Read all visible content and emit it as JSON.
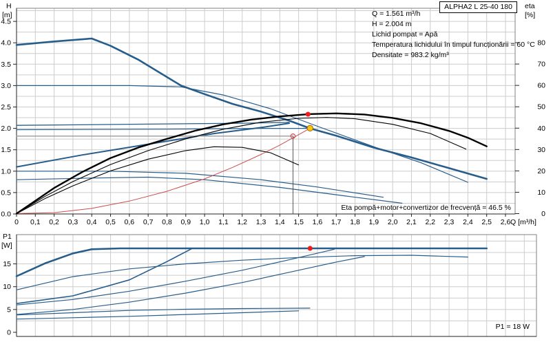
{
  "panel": {
    "model": "ALPHA2 L 25-40 180"
  },
  "info": {
    "lines": [
      "Q = 1.561 m³/h",
      "H = 2.004 m",
      "Lichid pompat = Apă",
      "Temperatura lichidului în timpul funcționării = 60 °C",
      "Densitate = 983.2 kg/m³"
    ]
  },
  "colors": {
    "performance": "#275d8b",
    "eta": "#000000",
    "system": "#cc4d4d",
    "setpoint": "#9a9a9a",
    "drop": "#444444",
    "marker_red": "#ee1c1c",
    "marker_yellow": "#ffc20e",
    "grid": "#cccccc",
    "frame": "#808080"
  },
  "chart_data": [
    {
      "id": "head",
      "type": "line",
      "xlabel": "Q [m³/h]",
      "ylabel_left": "H",
      "ylabel_left_unit": "[m]",
      "ylabel_right": "eta",
      "ylabel_right_unit": "[%]",
      "xlim": [
        0,
        2.6
      ],
      "ylim_left": [
        0,
        4.8
      ],
      "ylim_right": [
        0,
        96
      ],
      "grid": true,
      "legend": "none",
      "x_tick_values": [
        0,
        0.1,
        0.2,
        0.3,
        0.4,
        0.5,
        0.6,
        0.7,
        0.8,
        0.9,
        1.0,
        1.1,
        1.2,
        1.3,
        1.4,
        1.5,
        1.6,
        1.7,
        1.8,
        1.9,
        2.0,
        2.1,
        2.2,
        2.3,
        2.4,
        2.5,
        2.6
      ],
      "x_tick_labels": [
        "0",
        "0,1",
        "0,2",
        "0,3",
        "0,4",
        "0,5",
        "0,6",
        "0,7",
        "0,8",
        "0,9",
        "1,0",
        "1,1",
        "1,2",
        "1,3",
        "1,4",
        "1,5",
        "1,6",
        "1,7",
        "1,8",
        "1,9",
        "2,0",
        "2,1",
        "2,2",
        "2,3",
        "2,4",
        "2,5",
        "2,6"
      ],
      "y_tick_values": [
        0,
        0.5,
        1,
        1.5,
        2,
        2.5,
        3,
        3.5,
        4,
        4.5
      ],
      "y_tick_labels": [
        "0.0",
        "0.5",
        "1.0",
        "1.5",
        "2.0",
        "2.5",
        "3.0",
        "3.5",
        "4.0",
        "4.5"
      ],
      "y2_tick_values": [
        0,
        10,
        20,
        30,
        40,
        50,
        60,
        70,
        80
      ],
      "y2_tick_labels": [
        "0",
        "10",
        "20",
        "30",
        "40",
        "50",
        "60",
        "70",
        "80"
      ],
      "annotation": "Eta pompă+motor+convertizor de frecvență = 46.5 %",
      "series": [
        {
          "name": "speed-iii-curve",
          "role": "performance",
          "axis": "left",
          "width": 2.6,
          "points": [
            [
              0,
              3.95
            ],
            [
              0.2,
              4.03
            ],
            [
              0.4,
              4.1
            ],
            [
              0.5,
              3.93
            ],
            [
              0.65,
              3.6
            ],
            [
              0.875,
              3.0
            ],
            [
              1.0,
              2.8
            ],
            [
              1.15,
              2.57
            ],
            [
              1.3,
              2.39
            ],
            [
              1.45,
              2.18
            ],
            [
              1.561,
              2.0
            ],
            [
              1.7,
              1.83
            ],
            [
              1.9,
              1.55
            ],
            [
              2.1,
              1.32
            ],
            [
              2.3,
              1.07
            ],
            [
              2.5,
              0.82
            ]
          ]
        },
        {
          "name": "speed-ii-curve",
          "role": "performance",
          "axis": "left",
          "width": 1.2,
          "points": [
            [
              0,
              3.0
            ],
            [
              0.6,
              3.0
            ],
            [
              0.875,
              2.97
            ],
            [
              1.1,
              2.78
            ],
            [
              1.35,
              2.46
            ],
            [
              1.6,
              2.05
            ],
            [
              1.9,
              1.57
            ],
            [
              2.15,
              1.2
            ],
            [
              2.4,
              0.74
            ]
          ]
        },
        {
          "name": "cp-high-curve",
          "role": "performance",
          "axis": "left",
          "width": 1.3,
          "points": [
            [
              0,
              2.07
            ],
            [
              0.7,
              2.1
            ],
            [
              1.2,
              2.12
            ],
            [
              1.45,
              2.14
            ]
          ]
        },
        {
          "name": "cp-2-curve",
          "role": "performance",
          "axis": "left",
          "width": 1.2,
          "points": [
            [
              0,
              1.97
            ],
            [
              0.8,
              1.98
            ],
            [
              1.3,
              2.0
            ],
            [
              1.561,
              2.0
            ]
          ]
        },
        {
          "name": "pp-2-curve",
          "role": "performance",
          "axis": "left",
          "width": 2.0,
          "points": [
            [
              0,
              1.1
            ],
            [
              0.35,
              1.38
            ],
            [
              0.7,
              1.63
            ],
            [
              1.05,
              1.88
            ],
            [
              1.3,
              2.02
            ],
            [
              1.45,
              2.12
            ]
          ]
        },
        {
          "name": "speed-i-curve",
          "role": "performance",
          "axis": "left",
          "width": 1.2,
          "points": [
            [
              0,
              1.0
            ],
            [
              0.5,
              1.0
            ],
            [
              0.9,
              0.95
            ],
            [
              1.3,
              0.8
            ],
            [
              1.6,
              0.63
            ],
            [
              1.95,
              0.39
            ]
          ]
        },
        {
          "name": "pp-1-curve",
          "role": "performance",
          "axis": "left",
          "width": 1.2,
          "points": [
            [
              0,
              0.8
            ],
            [
              0.4,
              0.84
            ],
            [
              0.7,
              0.86
            ],
            [
              1.0,
              0.8
            ],
            [
              1.4,
              0.62
            ],
            [
              1.75,
              0.42
            ],
            [
              2.05,
              0.25
            ]
          ]
        },
        {
          "name": "setpoint-line",
          "role": "setpoint",
          "axis": "left",
          "width": 1.3,
          "points": [
            [
              0,
              1.82
            ],
            [
              1.47,
              1.82
            ]
          ]
        },
        {
          "name": "setpoint-drop-line",
          "role": "drop",
          "axis": "left",
          "width": 0.9,
          "points": [
            [
              1.47,
              1.82
            ],
            [
              1.47,
              0
            ]
          ]
        },
        {
          "name": "system-curve",
          "role": "system",
          "axis": "left",
          "width": 1.0,
          "points": [
            [
              0,
              0.01
            ],
            [
              0.2,
              0.03
            ],
            [
              0.4,
              0.13
            ],
            [
              0.6,
              0.3
            ],
            [
              0.8,
              0.53
            ],
            [
              1.0,
              0.82
            ],
            [
              1.15,
              1.09
            ],
            [
              1.3,
              1.39
            ],
            [
              1.4,
              1.61
            ],
            [
              1.47,
              1.78
            ],
            [
              1.561,
              2.004
            ]
          ]
        },
        {
          "name": "eta-speed-iii-curve",
          "role": "eta",
          "axis": "right",
          "width": 2.4,
          "points": [
            [
              0,
              0
            ],
            [
              0.1,
              6
            ],
            [
              0.2,
              12
            ],
            [
              0.35,
              19.5
            ],
            [
              0.5,
              26
            ],
            [
              0.65,
              31
            ],
            [
              0.8,
              35
            ],
            [
              0.95,
              38.8
            ],
            [
              1.1,
              41.8
            ],
            [
              1.25,
              44
            ],
            [
              1.4,
              45.5
            ],
            [
              1.561,
              46.6
            ],
            [
              1.7,
              46.9
            ],
            [
              1.85,
              46.4
            ],
            [
              2.0,
              44.8
            ],
            [
              2.15,
              42.3
            ],
            [
              2.3,
              38.7
            ],
            [
              2.4,
              35.5
            ],
            [
              2.5,
              31.5
            ]
          ]
        },
        {
          "name": "eta-speed-ii-curve",
          "role": "eta",
          "axis": "right",
          "width": 1.1,
          "points": [
            [
              0,
              0
            ],
            [
              0.15,
              8
            ],
            [
              0.3,
              15
            ],
            [
              0.5,
              23
            ],
            [
              0.7,
              29.5
            ],
            [
              0.9,
              35
            ],
            [
              1.1,
              39.5
            ],
            [
              1.3,
              42.8
            ],
            [
              1.5,
              44.6
            ],
            [
              1.65,
              45
            ],
            [
              1.8,
              44.4
            ],
            [
              2.0,
              41.8
            ],
            [
              2.2,
              37.5
            ],
            [
              2.39,
              30.2
            ]
          ]
        },
        {
          "name": "eta-speed-i-curve",
          "role": "eta",
          "axis": "right",
          "width": 1.1,
          "points": [
            [
              0,
              0
            ],
            [
              0.15,
              7
            ],
            [
              0.3,
              13
            ],
            [
              0.5,
              20
            ],
            [
              0.7,
              25.5
            ],
            [
              0.9,
              29.5
            ],
            [
              1.05,
              31.3
            ],
            [
              1.2,
              31
            ],
            [
              1.35,
              28.5
            ],
            [
              1.5,
              22.8
            ]
          ]
        }
      ],
      "markers": [
        {
          "name": "setpoint-marker",
          "shape": "open",
          "axis": "left",
          "q": 1.47,
          "value": 1.82,
          "color": "system",
          "r": 3.2
        },
        {
          "name": "duty-point-marker",
          "shape": "dot",
          "axis": "left",
          "q": 1.561,
          "value": 2.004,
          "color": "marker_yellow",
          "stroke": "#8a6d00",
          "r": 4.2
        },
        {
          "name": "efficiency-point-marker",
          "shape": "dot",
          "axis": "right",
          "q": 1.55,
          "value": 46.5,
          "color": "marker_red",
          "r": 3.6
        }
      ]
    },
    {
      "id": "power",
      "type": "line",
      "xlabel": "",
      "ylabel_left": "P1",
      "ylabel_left_unit": "[W]",
      "xlim": [
        0,
        2.77
      ],
      "ylim_left": [
        0,
        22.3
      ],
      "grid": true,
      "legend": "none",
      "y_tick_values": [
        0,
        5,
        10,
        15
      ],
      "y_tick_labels": [
        "0",
        "5",
        "10",
        "15"
      ],
      "annotation": "P1 = 18 W",
      "series": [
        {
          "name": "p1-speed-iii-curve",
          "role": "performance",
          "axis": "left",
          "width": 2.6,
          "points": [
            [
              0,
              12.3
            ],
            [
              0.15,
              15.1
            ],
            [
              0.3,
              17.3
            ],
            [
              0.4,
              18.2
            ],
            [
              0.55,
              18.4
            ],
            [
              1.5,
              18.4
            ],
            [
              2.5,
              18.4
            ]
          ]
        },
        {
          "name": "p1-speed-ii-curve",
          "role": "performance",
          "axis": "left",
          "width": 1.2,
          "points": [
            [
              0,
              9.3
            ],
            [
              0.3,
              12.2
            ],
            [
              0.6,
              13.9
            ],
            [
              0.9,
              15.0
            ],
            [
              1.2,
              15.8
            ],
            [
              1.5,
              16.4
            ],
            [
              1.8,
              16.8
            ],
            [
              2.1,
              16.9
            ],
            [
              2.4,
              16.5
            ]
          ]
        },
        {
          "name": "p1-cp-high-curve",
          "role": "performance",
          "axis": "left",
          "width": 1.6,
          "points": [
            [
              0,
              6.3
            ],
            [
              0.3,
              8.0
            ],
            [
              0.6,
              11.5
            ],
            [
              0.8,
              15.5
            ],
            [
              0.93,
              18.3
            ]
          ]
        },
        {
          "name": "p1-pp-2-curve",
          "role": "performance",
          "axis": "left",
          "width": 1.2,
          "points": [
            [
              0,
              6.0
            ],
            [
              0.3,
              7.2
            ],
            [
              0.6,
              9.0
            ],
            [
              0.9,
              11.2
            ],
            [
              1.2,
              13.6
            ],
            [
              1.45,
              15.9
            ],
            [
              1.69,
              18.2
            ]
          ]
        },
        {
          "name": "p1-cp-2-curve",
          "role": "performance",
          "axis": "left",
          "width": 1.2,
          "points": [
            [
              0,
              3.9
            ],
            [
              0.3,
              5.0
            ],
            [
              0.6,
              6.6
            ],
            [
              0.9,
              8.6
            ],
            [
              1.2,
              10.9
            ],
            [
              1.5,
              13.6
            ],
            [
              1.7,
              15.4
            ],
            [
              1.85,
              16.6
            ]
          ]
        },
        {
          "name": "p1-speed-i-curve",
          "role": "performance",
          "axis": "left",
          "width": 1.2,
          "points": [
            [
              0,
              3.8
            ],
            [
              0.3,
              4.3
            ],
            [
              0.6,
              4.8
            ],
            [
              0.9,
              5.05
            ],
            [
              1.2,
              5.2
            ],
            [
              1.56,
              5.3
            ]
          ]
        },
        {
          "name": "p1-pp-1-curve",
          "role": "performance",
          "axis": "left",
          "width": 1.2,
          "points": [
            [
              0,
              2.9
            ],
            [
              0.3,
              3.2
            ],
            [
              0.6,
              3.5
            ],
            [
              0.9,
              3.9
            ],
            [
              1.2,
              4.3
            ],
            [
              1.5,
              4.7
            ]
          ]
        }
      ],
      "markers": [
        {
          "name": "p1-point-marker",
          "shape": "dot",
          "axis": "left",
          "q": 1.561,
          "value": 18.4,
          "color": "marker_red",
          "r": 3.6
        }
      ]
    }
  ]
}
